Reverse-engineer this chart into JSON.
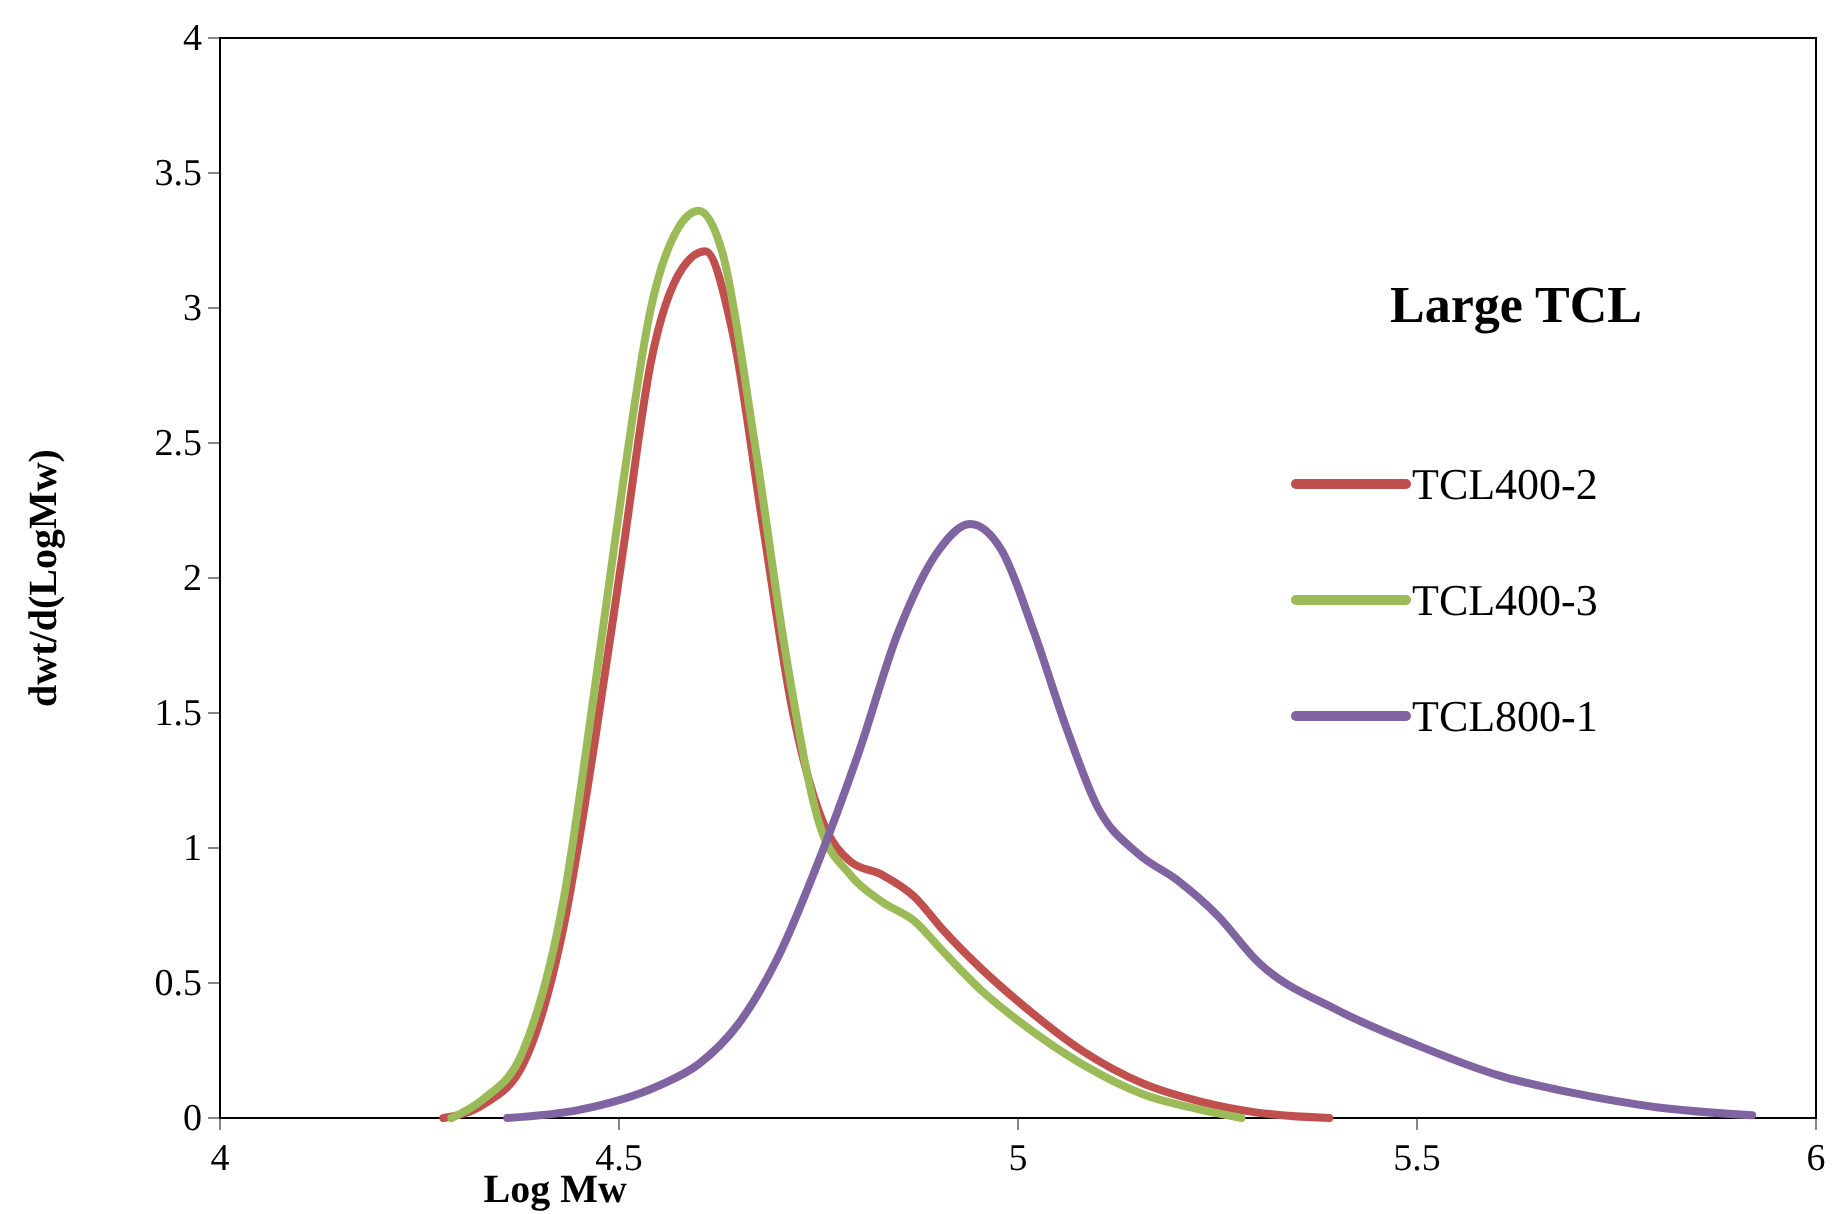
{
  "chart_data": {
    "type": "line",
    "title": "Large TCL",
    "xlabel": "Log Mw",
    "ylabel": "dwt/d(LogMw)",
    "xlim": [
      4,
      6
    ],
    "xticks": [
      4,
      4.5,
      5,
      5.5,
      6
    ],
    "ylim": [
      0,
      4
    ],
    "yticks": [
      0,
      0.5,
      1,
      1.5,
      2,
      2.5,
      3,
      3.5,
      4
    ],
    "grid": false,
    "legend": "right",
    "marker": "none",
    "line_style": "solid",
    "series": [
      {
        "name": "TCL400-2",
        "color": "#c0504d",
        "x": [
          4.28,
          4.33,
          4.38,
          4.43,
          4.47,
          4.505,
          4.54,
          4.58,
          4.608,
          4.643,
          4.68,
          4.718,
          4.755,
          4.79,
          4.83,
          4.87,
          4.905,
          4.955,
          5.005,
          5.08,
          5.155,
          5.23,
          5.3,
          5.39
        ],
        "values": [
          0,
          0.05,
          0.2,
          0.7,
          1.4,
          2.1,
          2.8,
          3.15,
          3.21,
          2.9,
          2.2,
          1.5,
          1.1,
          0.95,
          0.9,
          0.82,
          0.7,
          0.55,
          0.42,
          0.25,
          0.13,
          0.06,
          0.02,
          0
        ]
      },
      {
        "name": "TCL400-3",
        "color": "#9bbb59",
        "x": [
          4.29,
          4.33,
          4.38,
          4.43,
          4.47,
          4.505,
          4.54,
          4.575,
          4.6,
          4.63,
          4.67,
          4.71,
          4.75,
          4.79,
          4.83,
          4.87,
          4.905,
          4.955,
          5.005,
          5.08,
          5.155,
          5.23,
          5.28
        ],
        "values": [
          0,
          0.07,
          0.25,
          0.8,
          1.6,
          2.35,
          3.0,
          3.3,
          3.36,
          3.2,
          2.5,
          1.7,
          1.1,
          0.9,
          0.8,
          0.73,
          0.62,
          0.47,
          0.35,
          0.2,
          0.09,
          0.03,
          0
        ]
      },
      {
        "name": "TCL800-1",
        "color": "#8064a2",
        "x": [
          4.36,
          4.45,
          4.55,
          4.6,
          4.65,
          4.7,
          4.75,
          4.8,
          4.85,
          4.9,
          4.94,
          4.98,
          5.02,
          5.06,
          5.1,
          5.15,
          5.2,
          5.25,
          5.3,
          5.4,
          5.5,
          5.6,
          5.7,
          5.8,
          5.92
        ],
        "values": [
          0,
          0.03,
          0.12,
          0.2,
          0.35,
          0.6,
          0.95,
          1.35,
          1.8,
          2.1,
          2.2,
          2.1,
          1.8,
          1.45,
          1.15,
          0.98,
          0.88,
          0.75,
          0.58,
          0.4,
          0.27,
          0.16,
          0.09,
          0.04,
          0.01
        ]
      }
    ]
  }
}
